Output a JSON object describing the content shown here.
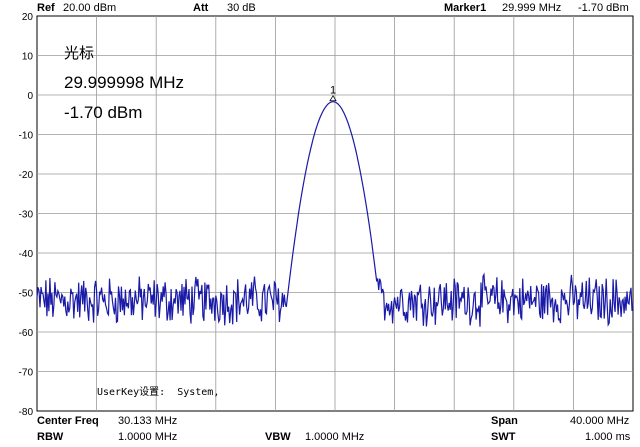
{
  "header": {
    "ref_label": "Ref",
    "ref_value": "20.00 dBm",
    "att_label": "Att",
    "att_value": "30 dB",
    "marker_label": "Marker1",
    "marker_freq": "29.999 MHz",
    "marker_level": "-1.70 dBm"
  },
  "marker_readout": {
    "title": "光标",
    "freq": "29.999998 MHz",
    "level": "-1.70 dBm",
    "marker_number": "1"
  },
  "userkey_text": "UserKey设置:  System,",
  "footer": {
    "center_freq_label": "Center Freq",
    "center_freq_value": "30.133 MHz",
    "span_label": "Span",
    "span_value": "40.000 MHz",
    "rbw_label": "RBW",
    "rbw_value": "1.0000 MHz",
    "vbw_label": "VBW",
    "vbw_value": "1.0000 MHz",
    "swt_label": "SWT",
    "swt_value": "1.000 ms"
  },
  "chart_data": {
    "type": "line",
    "ylim": [
      -80,
      20
    ],
    "y_ticks": [
      "20",
      "10",
      "0",
      "-10",
      "-20",
      "-30",
      "-40",
      "-50",
      "-60",
      "-70",
      "-80"
    ],
    "x_center_mhz": 30.133,
    "x_span_mhz": 40.0,
    "noise_floor_dbm": -52,
    "peak": {
      "x_mhz": 29.999998,
      "y_dbm": -1.7
    },
    "grid": true,
    "trace_color": "#1a1aa8"
  }
}
